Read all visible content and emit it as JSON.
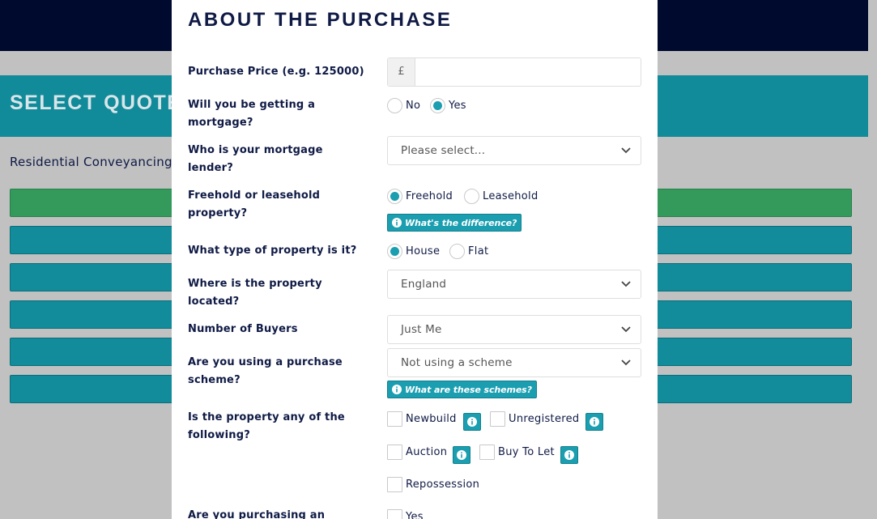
{
  "background": {
    "banner_title": "SELECT QUOTE",
    "subtitle": "Residential Conveyancing"
  },
  "modal": {
    "title": "ABOUT THE PURCHASE",
    "purchase_price": {
      "label": "Purchase Price (e.g. 125000)",
      "prefix": "£",
      "value": "",
      "placeholder": ""
    },
    "mortgage": {
      "label_line1": "Will you be getting a",
      "label_line2": "mortgage?",
      "options": [
        "No",
        "Yes"
      ],
      "selected": "Yes"
    },
    "lender": {
      "label_line1": "Who is your mortgage",
      "label_line2": "lender?",
      "value": "Please select..."
    },
    "tenure": {
      "label_line1": "Freehold or leasehold",
      "label_line2": "property?",
      "options": [
        "Freehold",
        "Leasehold"
      ],
      "selected": "Freehold",
      "help": "What's the difference?"
    },
    "property_type": {
      "label": "What type of property is it?",
      "options": [
        "House",
        "Flat"
      ],
      "selected": "House"
    },
    "location": {
      "label_line1": "Where is the property",
      "label_line2": "located?",
      "value": "England"
    },
    "buyers": {
      "label": "Number of Buyers",
      "value": "Just Me"
    },
    "scheme": {
      "label_line1": "Are you using a purchase",
      "label_line2": "scheme?",
      "value": "Not using a scheme",
      "help": "What are these schemes?"
    },
    "features": {
      "label_line1": "Is the property any of the",
      "label_line2": "following?",
      "options": [
        "Newbuild",
        "Unregistered",
        "Auction",
        "Buy To Let",
        "Repossession"
      ]
    },
    "next_question": {
      "label": "Are you purchasing an",
      "option": "Yes"
    }
  },
  "colors": {
    "navy": "#000a2e",
    "teal": "#1a9eb0",
    "green": "#339a5b",
    "text": "#0f1a45"
  }
}
